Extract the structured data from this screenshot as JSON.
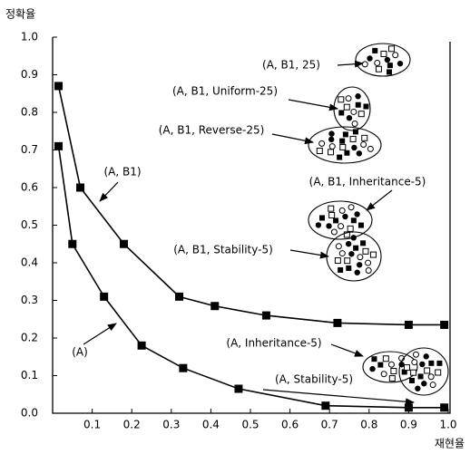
{
  "chart_data": {
    "type": "line",
    "y_label": "정확율",
    "x_label": "재현율",
    "xlim": [
      0,
      1
    ],
    "ylim": [
      0,
      1
    ],
    "xticks": [
      0.1,
      0.2,
      0.3,
      0.4,
      0.5,
      0.6,
      0.7,
      0.8,
      0.9,
      {
        "value": 1,
        "label": "1.0"
      }
    ],
    "yticks": [
      {
        "value": 0,
        "label": "0.0"
      },
      0.1,
      0.2,
      0.3,
      0.4,
      0.5,
      0.6,
      0.7,
      0.8,
      0.9,
      {
        "value": 1,
        "label": "1.0"
      }
    ],
    "series": [
      {
        "name": "(A, B1)",
        "color": "#000000",
        "x": [
          0.015,
          0.07,
          0.18,
          0.32,
          0.41,
          0.54,
          0.72,
          0.9,
          0.99
        ],
        "values": [
          0.87,
          0.6,
          0.45,
          0.31,
          0.285,
          0.26,
          0.24,
          0.235,
          0.235
        ]
      },
      {
        "name": "(A)",
        "color": "#000000",
        "x": [
          0.015,
          0.05,
          0.13,
          0.225,
          0.33,
          0.47,
          0.69,
          0.9,
          0.99
        ],
        "values": [
          0.71,
          0.45,
          0.31,
          0.18,
          0.12,
          0.065,
          0.02,
          0.015,
          0.015
        ]
      }
    ],
    "annotations": [
      "(A, B1, 25)",
      "(A, B1, Uniform-25)",
      "(A, B1, Reverse-25)",
      "(A, B1, Inheritance-5)",
      "(A, B1, Stability-5)",
      "(A, Inheritance-5)",
      "(A, Stability-5)"
    ]
  }
}
